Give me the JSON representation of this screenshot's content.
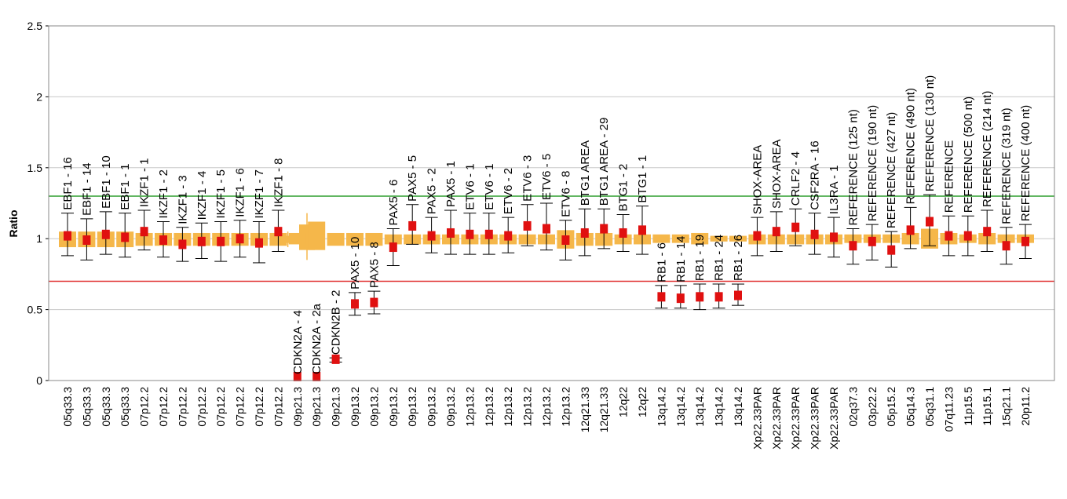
{
  "chart_data": {
    "type": "scatter",
    "title": "",
    "xlabel": "",
    "ylabel": "Ratio",
    "ylim": [
      0,
      2.5
    ],
    "yticks": [
      "0",
      "0.5",
      "1",
      "1.5",
      "2",
      "2.5"
    ],
    "grid": true,
    "threshold_lines": [
      {
        "value": 1.3,
        "color": "#2e9e2e"
      },
      {
        "value": 0.7,
        "color": "#e03030"
      }
    ],
    "colors": {
      "point": "#e01010",
      "box": "#f5b74a",
      "error_bar": "#000000"
    },
    "categories": [
      "05q33.3",
      "05q33.3",
      "05q33.3",
      "05q33.3",
      "07p12.2",
      "07p12.2",
      "07p12.2",
      "07p12.2",
      "07p12.2",
      "07p12.2",
      "07p12.2",
      "07p12.2",
      "09p21.3",
      "09p21.3",
      "09p21.3",
      "09p13.2",
      "09p13.2",
      "09p13.2",
      "09p13.2",
      "09p13.2",
      "09p13.2",
      "12p13.2",
      "12p13.2",
      "12p13.2",
      "12p13.2",
      "12p13.2",
      "12p13.2",
      "12q21.33",
      "12q21.33",
      "12q22",
      "12q22",
      "13q14.2",
      "13q14.2",
      "13q14.2",
      "13q14.2",
      "13q14.2",
      "Xp22.33PAR",
      "Xp22.33PAR",
      "Xp22.33PAR",
      "Xp22.33PAR",
      "Xp22.33PAR",
      "02q37.3",
      "03p22.2",
      "05p15.2",
      "05q14.3",
      "05q31.1",
      "07q11.23",
      "11p15.5",
      "11p15.1",
      "15q21.1",
      "20p11.2"
    ],
    "probes": [
      "EBF1 - 16",
      "EBF1 - 14",
      "EBF1 - 10",
      "EBF1 - 1",
      "IKZF1 - 1",
      "IKZF1 - 2",
      "IKZF1 - 3",
      "IKZF1 - 4",
      "IKZF1 - 5",
      "IKZF1 - 6",
      "IKZF1 - 7",
      "IKZF1 - 8",
      "CDKN2A - 4",
      "CDKN2A - 2a",
      "CDKN2B - 2",
      "PAX5 - 10",
      "PAX5 - 8",
      "PAX5 - 6",
      "PAX5 - 5",
      "PAX5 - 2",
      "PAX5 - 1",
      "ETV6 - 1",
      "ETV6 - 1",
      "ETV6 - 2",
      "ETV6 - 3",
      "ETV6 - 5",
      "ETV6 - 8",
      "BTG1 AREA",
      "BTG1 AREA - 29",
      "BTG1 - 2",
      "BTG1 - 1",
      "RB1 - 6",
      "RB1 - 14",
      "RB1 - 19",
      "RB1 - 24",
      "RB1 - 26",
      "SHOX-AREA",
      "SHOX-AREA",
      "CRLF2 - 4",
      "CSF2RA - 16",
      "IL3RA - 1",
      "REFERENCE (125 nt)",
      "REFERENCE (190 nt)",
      "REFERENCE (427 nt)",
      "REFERENCE (490 nt)",
      "REFERENCE (130 nt)",
      "REFERENCE",
      "REFERENCE (500 nt)",
      "REFERENCE (214 nt)",
      "REFERENCE (319 nt)",
      "REFERENCE (400 nt)"
    ],
    "values": [
      1.02,
      0.99,
      1.03,
      1.01,
      1.05,
      0.99,
      0.96,
      0.98,
      0.98,
      1.0,
      0.97,
      1.05,
      0.0,
      0.0,
      0.15,
      0.54,
      0.55,
      0.94,
      1.09,
      1.02,
      1.04,
      1.03,
      1.03,
      1.02,
      1.09,
      1.07,
      0.99,
      1.04,
      1.07,
      1.04,
      1.06,
      0.59,
      0.58,
      0.59,
      0.59,
      0.6,
      1.02,
      1.05,
      1.08,
      1.03,
      1.01,
      0.95,
      0.98,
      0.92,
      1.06,
      1.12,
      1.02,
      1.02,
      1.05,
      0.95,
      0.98
    ],
    "error_low": [
      0.88,
      0.85,
      0.89,
      0.87,
      0.92,
      0.87,
      0.84,
      0.86,
      0.84,
      0.87,
      0.83,
      0.91,
      0.0,
      0.0,
      0.13,
      0.46,
      0.47,
      0.81,
      0.96,
      0.9,
      0.89,
      0.89,
      0.89,
      0.9,
      0.95,
      0.92,
      0.85,
      0.88,
      0.93,
      0.91,
      0.89,
      0.51,
      0.51,
      0.5,
      0.51,
      0.53,
      0.88,
      0.91,
      0.95,
      0.89,
      0.87,
      0.82,
      0.85,
      0.8,
      0.93,
      0.95,
      0.88,
      0.88,
      0.91,
      0.82,
      0.86
    ],
    "error_high": [
      1.18,
      1.14,
      1.19,
      1.18,
      1.2,
      1.12,
      1.08,
      1.11,
      1.12,
      1.13,
      1.12,
      1.2,
      0.0,
      0.0,
      0.16,
      0.62,
      0.63,
      1.07,
      1.24,
      1.15,
      1.2,
      1.18,
      1.18,
      1.15,
      1.24,
      1.25,
      1.13,
      1.21,
      1.21,
      1.17,
      1.23,
      0.67,
      0.67,
      0.68,
      0.68,
      0.68,
      1.15,
      1.19,
      1.21,
      1.18,
      1.15,
      1.07,
      1.1,
      1.05,
      1.22,
      1.31,
      1.16,
      1.16,
      1.2,
      1.08,
      1.1
    ],
    "box_low": [
      0.94,
      0.94,
      0.94,
      0.94,
      0.95,
      0.95,
      0.95,
      0.95,
      0.95,
      0.95,
      0.95,
      0.95,
      0.96,
      0.92,
      0.95,
      0.95,
      0.95,
      0.96,
      0.96,
      0.96,
      0.96,
      0.96,
      0.96,
      0.96,
      0.96,
      0.96,
      0.93,
      0.95,
      0.95,
      0.96,
      0.96,
      0.97,
      0.97,
      0.96,
      0.98,
      0.98,
      0.96,
      0.96,
      0.96,
      0.96,
      0.96,
      0.97,
      0.97,
      0.97,
      0.96,
      0.93,
      0.96,
      0.97,
      0.96,
      0.97,
      0.97
    ],
    "box_high": [
      1.05,
      1.05,
      1.05,
      1.05,
      1.04,
      1.04,
      1.04,
      1.04,
      1.04,
      1.04,
      1.04,
      1.04,
      1.04,
      1.12,
      1.04,
      1.04,
      1.04,
      1.03,
      1.03,
      1.03,
      1.03,
      1.03,
      1.03,
      1.03,
      1.03,
      1.03,
      1.06,
      1.04,
      1.04,
      1.03,
      1.03,
      1.03,
      1.03,
      1.04,
      1.02,
      1.02,
      1.03,
      1.03,
      1.03,
      1.03,
      1.03,
      1.03,
      1.03,
      1.03,
      1.04,
      1.07,
      1.04,
      1.03,
      1.04,
      1.03,
      1.03
    ],
    "extra_boxes": [
      {
        "after_index": 11,
        "low": 0.97,
        "high": 1.02,
        "whisker_low": 0.94,
        "whisker_high": 1.05
      },
      {
        "after_index": 12,
        "low": 0.92,
        "high": 1.1,
        "whisker_low": 0.85,
        "whisker_high": 1.18
      }
    ]
  }
}
